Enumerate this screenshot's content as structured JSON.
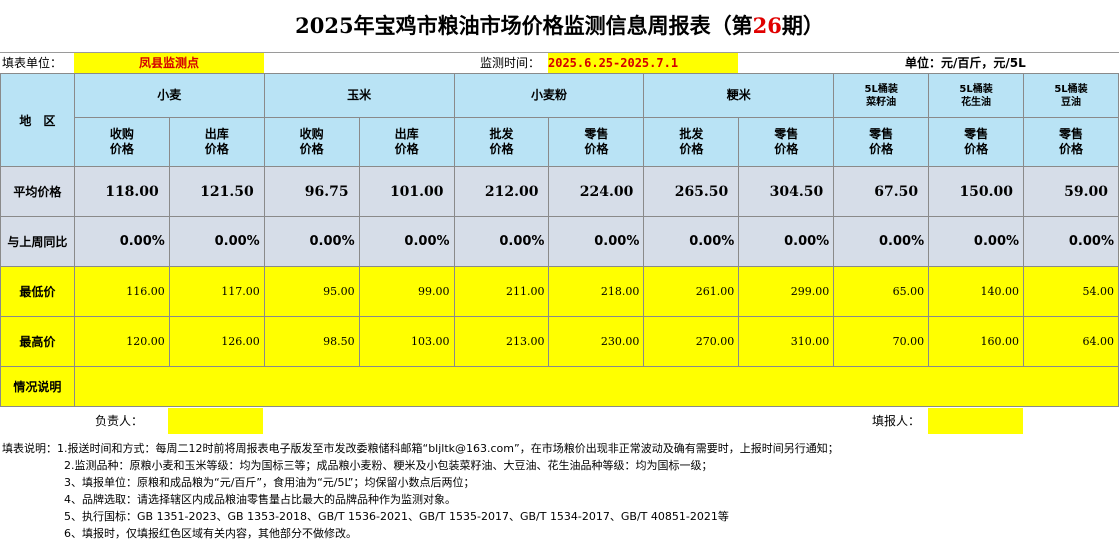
{
  "title": {
    "prefix": "2025年宝鸡市粮油市场价格监测信息周报表（第",
    "issue": "26",
    "suffix": "期）"
  },
  "info": {
    "unit_label": "填表单位：",
    "unit_value": "凤县监测点",
    "period_label": "监测时间：",
    "period_value": "2025.6.25-2025.7.1",
    "units_note": "单位：元/百斤，元/5L"
  },
  "header": {
    "region": "地　区",
    "groups": [
      "小麦",
      "玉米",
      "小麦粉",
      "粳米",
      "5L桶装\n菜籽油",
      "5L桶装\n花生油",
      "5L桶装\n豆油"
    ],
    "subs": [
      "收购\n价格",
      "出库\n价格",
      "收购\n价格",
      "出库\n价格",
      "批发\n价格",
      "零售\n价格",
      "批发\n价格",
      "零售\n价格",
      "零售\n价格",
      "零售\n价格",
      "零售\n价格"
    ]
  },
  "rows": {
    "avg_label": "平均价格",
    "avg": [
      "118.00",
      "121.50",
      "96.75",
      "101.00",
      "212.00",
      "224.00",
      "265.50",
      "304.50",
      "67.50",
      "150.00",
      "59.00"
    ],
    "wow_label": "与上周同比",
    "wow": [
      "0.00%",
      "0.00%",
      "0.00%",
      "0.00%",
      "0.00%",
      "0.00%",
      "0.00%",
      "0.00%",
      "0.00%",
      "0.00%",
      "0.00%"
    ],
    "min_label": "最低价",
    "min": [
      "116.00",
      "117.00",
      "95.00",
      "99.00",
      "211.00",
      "218.00",
      "261.00",
      "299.00",
      "65.00",
      "140.00",
      "54.00"
    ],
    "max_label": "最高价",
    "max": [
      "120.00",
      "126.00",
      "98.50",
      "103.00",
      "213.00",
      "230.00",
      "270.00",
      "310.00",
      "70.00",
      "160.00",
      "64.00"
    ],
    "remarks_label": "情况说明",
    "remarks_value": ""
  },
  "sign": {
    "responsible_label": "负责人：",
    "responsible_value": "",
    "filler_label": "填报人：",
    "filler_value": ""
  },
  "notes": [
    "填表说明：1.报送时间和方式：每周二12时前将周报表电子版发至市发改委粮储科邮箱“bljltk@163.com”，在市场粮价出现非正常波动及确有需要时，上报时间另行通知；",
    "2.监测品种：原粮小麦和玉米等级：均为国标三等；成品粮小麦粉、粳米及小包装菜籽油、大豆油、花生油品种等级：均为国标一级；",
    "3、填报单位：原粮和成品粮为“元/百斤”，食用油为“元/5L”；均保留小数点后两位；",
    "4、品牌选取：请选择辖区内成品粮油零售量占比最大的品牌品种作为监测对象。",
    "5、执行国标：GB 1351-2023、GB 1353-2018、GB/T 1536-2021、GB/T 1535-2017、GB/T 1534-2017、GB/T 40851-2021等",
    "6、填报时，仅填报红色区域有关内容，其他部分不做修改。"
  ]
}
